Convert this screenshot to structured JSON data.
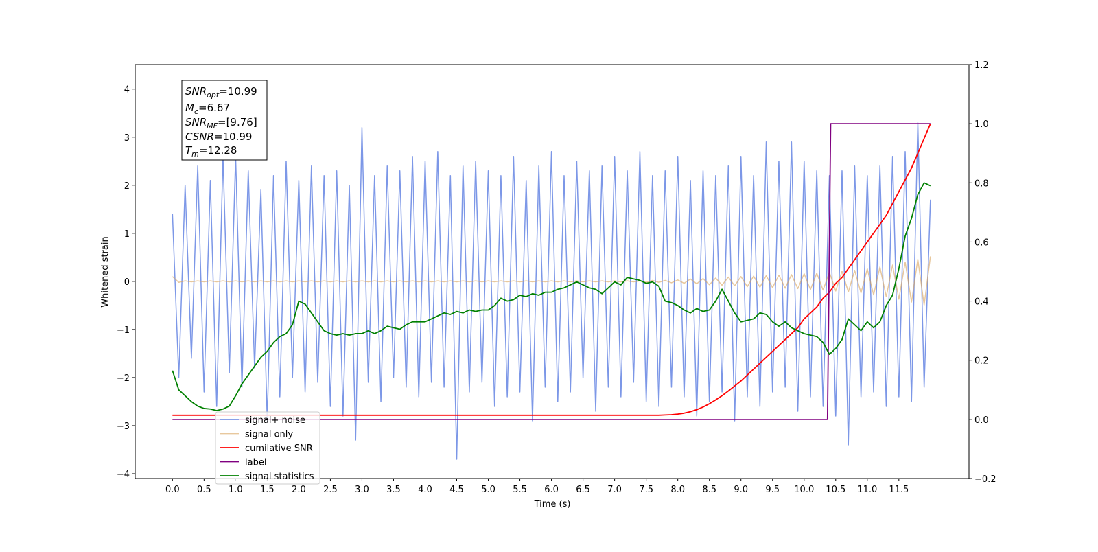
{
  "chart_data": {
    "type": "line",
    "xlabel": "Time (s)",
    "ylabel": "Whitened strain",
    "annotation": [
      {
        "base": "SNR",
        "sub": "opt",
        "text": "=10.99"
      },
      {
        "base": "M",
        "sub": "c",
        "text": "=6.67"
      },
      {
        "base": "SNR",
        "sub": "MF",
        "text": "=[9.76]"
      },
      {
        "base": "CSNR",
        "sub": null,
        "text": "=10.99"
      },
      {
        "base": "T",
        "sub": "m",
        "text": "=12.28"
      }
    ],
    "xlim": [
      -0.59,
      12.61
    ],
    "ylim": [
      -4.1,
      4.51
    ],
    "y2lim": [
      -0.2,
      1.2
    ],
    "xticks": [
      {
        "value": 0,
        "label": "0.0"
      },
      0.5,
      {
        "value": 1,
        "label": "1.0"
      },
      1.5,
      {
        "value": 2,
        "label": "2.0"
      },
      2.5,
      {
        "value": 3,
        "label": "3.0"
      },
      3.5,
      {
        "value": 4,
        "label": "4.0"
      },
      4.5,
      {
        "value": 5,
        "label": "5.0"
      },
      5.5,
      {
        "value": 6,
        "label": "6.0"
      },
      6.5,
      {
        "value": 7,
        "label": "7.0"
      },
      7.5,
      {
        "value": 8,
        "label": "8.0"
      },
      8.5,
      {
        "value": 9,
        "label": "9.0"
      },
      9.5,
      {
        "value": 10,
        "label": "10.0"
      },
      10.5,
      {
        "value": 11,
        "label": "11.0"
      },
      11.5
    ],
    "yticks": [
      {
        "value": -4,
        "label": "−4"
      },
      {
        "value": -3,
        "label": "−3"
      },
      {
        "value": -2,
        "label": "−2"
      },
      {
        "value": -1,
        "label": "−1"
      },
      0,
      1,
      2,
      3,
      4
    ],
    "y2ticks": [
      {
        "value": -0.2,
        "label": "−0.2"
      },
      {
        "value": 0,
        "label": "0.0"
      },
      0.2,
      0.4,
      0.6,
      0.8,
      {
        "value": 1,
        "label": "1.0"
      },
      1.2
    ],
    "legend": "lower left",
    "x": [
      0,
      0.1,
      0.2,
      0.3,
      0.4,
      0.5,
      0.6,
      0.7,
      0.8,
      0.9,
      1,
      1.1,
      1.2,
      1.3,
      1.4,
      1.5,
      1.6,
      1.7,
      1.8,
      1.9,
      2,
      2.1,
      2.2,
      2.3,
      2.4,
      2.5,
      2.6,
      2.7,
      2.8,
      2.9,
      3,
      3.1,
      3.2,
      3.3,
      3.4,
      3.5,
      3.6,
      3.7,
      3.8,
      3.9,
      4,
      4.1,
      4.2,
      4.3,
      4.4,
      4.5,
      4.6,
      4.7,
      4.8,
      4.9,
      5,
      5.1,
      5.2,
      5.3,
      5.4,
      5.5,
      5.6,
      5.7,
      5.8,
      5.9,
      6,
      6.1,
      6.2,
      6.3,
      6.4,
      6.5,
      6.6,
      6.7,
      6.8,
      6.9,
      7,
      7.1,
      7.2,
      7.3,
      7.4,
      7.5,
      7.6,
      7.7,
      7.8,
      7.9,
      8,
      8.1,
      8.2,
      8.3,
      8.4,
      8.5,
      8.6,
      8.7,
      8.8,
      8.9,
      9,
      9.1,
      9.2,
      9.3,
      9.4,
      9.5,
      9.6,
      9.7,
      9.8,
      9.9,
      10,
      10.1,
      10.2,
      10.3,
      10.4,
      10.5,
      10.6,
      10.7,
      10.8,
      10.9,
      11,
      11.1,
      11.2,
      11.3,
      11.4,
      11.5,
      11.6,
      11.7,
      11.8,
      11.9,
      12
    ],
    "series": [
      {
        "name": "signal+ noise",
        "color": "#7591e6",
        "values": [
          1.4,
          -2.0,
          2.0,
          -1.6,
          2.4,
          -2.3,
          2.1,
          -2.6,
          2.6,
          -1.9,
          2.6,
          -2.2,
          2.3,
          -1.8,
          1.9,
          -2.9,
          2.2,
          -2.4,
          2.5,
          -2.0,
          2.1,
          -2.3,
          2.4,
          -2.1,
          2.2,
          -2.6,
          2.3,
          -2.8,
          2.0,
          -3.3,
          3.2,
          -2.1,
          2.2,
          -2.5,
          2.4,
          -2.0,
          2.3,
          -2.2,
          2.6,
          -2.4,
          2.5,
          -2.1,
          2.7,
          -2.2,
          2.2,
          -3.7,
          2.4,
          -2.3,
          2.5,
          -2.1,
          2.3,
          -2.6,
          2.2,
          -2.4,
          2.6,
          -2.3,
          2.1,
          -2.9,
          2.4,
          -2.2,
          2.7,
          -2.5,
          2.2,
          -2.3,
          2.5,
          -2.0,
          2.3,
          -2.7,
          2.4,
          -2.2,
          2.6,
          -2.4,
          2.3,
          -2.1,
          2.7,
          -2.5,
          2.2,
          -2.6,
          2.3,
          -2.2,
          2.6,
          -2.4,
          2.1,
          -2.8,
          2.3,
          -2.5,
          2.2,
          -2.3,
          2.4,
          -2.9,
          2.6,
          -2.4,
          2.2,
          -2.6,
          2.9,
          -2.3,
          2.5,
          -2.2,
          2.9,
          -2.7,
          2.5,
          -2.4,
          2.3,
          -2.6,
          2.2,
          -2.8,
          2.3,
          -3.4,
          2.4,
          -2.4,
          2.2,
          -2.3,
          2.4,
          -2.6,
          2.6,
          -2.4,
          2.7,
          -2.5,
          3.3,
          -2.2,
          1.7
        ]
      },
      {
        "name": "signal only",
        "color": "#d9a35c",
        "values": [
          0.1,
          -0.02,
          0.01,
          -0.01,
          0.01,
          -0.01,
          0.01,
          -0.01,
          0.01,
          -0.01,
          0.01,
          -0.01,
          0.01,
          -0.01,
          0.01,
          -0.01,
          0.01,
          -0.01,
          0.01,
          -0.01,
          0.01,
          -0.01,
          0.01,
          -0.01,
          0.01,
          -0.01,
          0.01,
          -0.01,
          0.01,
          -0.01,
          0.01,
          -0.01,
          0.01,
          -0.01,
          0.01,
          -0.01,
          0.01,
          -0.01,
          0.01,
          -0.01,
          0.01,
          -0.01,
          0.01,
          -0.01,
          0.01,
          -0.01,
          0.01,
          -0.01,
          0.01,
          -0.01,
          0.01,
          -0.01,
          0.01,
          -0.01,
          0.01,
          -0.01,
          0.01,
          -0.01,
          0.01,
          -0.01,
          0.01,
          -0.01,
          0.01,
          -0.01,
          0.01,
          -0.01,
          0.01,
          -0.01,
          0.01,
          -0.01,
          0.01,
          -0.01,
          0.01,
          -0.01,
          0.01,
          -0.02,
          0.02,
          -0.02,
          0.02,
          -0.03,
          0.03,
          -0.04,
          0.05,
          -0.05,
          0.06,
          -0.07,
          0.07,
          -0.08,
          0.09,
          -0.09,
          0.1,
          -0.11,
          0.11,
          -0.12,
          0.12,
          -0.13,
          0.13,
          -0.14,
          0.14,
          -0.15,
          0.16,
          -0.17,
          0.17,
          -0.18,
          0.19,
          -0.2,
          0.21,
          -0.22,
          0.23,
          -0.24,
          0.26,
          -0.28,
          0.3,
          -0.32,
          0.34,
          -0.37,
          0.4,
          -0.43,
          0.46,
          -0.49,
          0.52
        ]
      },
      {
        "name": "cumilative SNR",
        "color": "#ff0000",
        "axis": "y2",
        "values": [
          0.014,
          0.014,
          0.014,
          0.014,
          0.014,
          0.014,
          0.014,
          0.014,
          0.014,
          0.014,
          0.014,
          0.014,
          0.014,
          0.014,
          0.014,
          0.014,
          0.014,
          0.014,
          0.014,
          0.014,
          0.014,
          0.014,
          0.014,
          0.014,
          0.014,
          0.014,
          0.014,
          0.014,
          0.014,
          0.014,
          0.014,
          0.014,
          0.014,
          0.014,
          0.014,
          0.014,
          0.014,
          0.014,
          0.014,
          0.014,
          0.014,
          0.014,
          0.014,
          0.014,
          0.014,
          0.014,
          0.014,
          0.014,
          0.014,
          0.014,
          0.014,
          0.014,
          0.014,
          0.014,
          0.014,
          0.014,
          0.014,
          0.014,
          0.014,
          0.014,
          0.014,
          0.014,
          0.014,
          0.014,
          0.014,
          0.014,
          0.014,
          0.014,
          0.014,
          0.014,
          0.014,
          0.014,
          0.014,
          0.014,
          0.014,
          0.014,
          0.014,
          0.014,
          0.015,
          0.016,
          0.018,
          0.021,
          0.026,
          0.033,
          0.042,
          0.053,
          0.066,
          0.08,
          0.096,
          0.113,
          0.13,
          0.15,
          0.17,
          0.19,
          0.21,
          0.23,
          0.25,
          0.27,
          0.29,
          0.31,
          0.34,
          0.36,
          0.38,
          0.41,
          0.43,
          0.46,
          0.48,
          0.51,
          0.54,
          0.57,
          0.6,
          0.63,
          0.66,
          0.69,
          0.73,
          0.77,
          0.81,
          0.85,
          0.9,
          0.95,
          1.0
        ]
      },
      {
        "name": "label",
        "color": "#800080",
        "axis": "y2",
        "x": [
          0,
          10.37,
          10.42,
          12
        ],
        "values": [
          0,
          0,
          1,
          1
        ]
      },
      {
        "name": "signal statistics",
        "color": "#008000",
        "axis": "y2",
        "values": [
          0.165,
          0.1,
          0.08,
          0.06,
          0.045,
          0.037,
          0.035,
          0.03,
          0.035,
          0.045,
          0.08,
          0.12,
          0.15,
          0.18,
          0.21,
          0.23,
          0.26,
          0.28,
          0.29,
          0.32,
          0.4,
          0.39,
          0.36,
          0.33,
          0.3,
          0.29,
          0.285,
          0.29,
          0.285,
          0.29,
          0.29,
          0.3,
          0.29,
          0.3,
          0.315,
          0.31,
          0.305,
          0.32,
          0.33,
          0.33,
          0.33,
          0.34,
          0.35,
          0.36,
          0.355,
          0.365,
          0.36,
          0.37,
          0.365,
          0.37,
          0.37,
          0.385,
          0.41,
          0.4,
          0.405,
          0.42,
          0.415,
          0.425,
          0.42,
          0.43,
          0.43,
          0.44,
          0.445,
          0.455,
          0.465,
          0.455,
          0.445,
          0.44,
          0.425,
          0.445,
          0.465,
          0.455,
          0.48,
          0.475,
          0.47,
          0.46,
          0.465,
          0.45,
          0.4,
          0.395,
          0.385,
          0.37,
          0.36,
          0.375,
          0.365,
          0.37,
          0.4,
          0.44,
          0.4,
          0.36,
          0.33,
          0.335,
          0.34,
          0.36,
          0.355,
          0.33,
          0.315,
          0.33,
          0.31,
          0.3,
          0.29,
          0.285,
          0.28,
          0.26,
          0.22,
          0.24,
          0.27,
          0.34,
          0.32,
          0.3,
          0.33,
          0.31,
          0.33,
          0.385,
          0.42,
          0.51,
          0.62,
          0.68,
          0.76,
          0.8,
          0.79
        ]
      }
    ]
  }
}
